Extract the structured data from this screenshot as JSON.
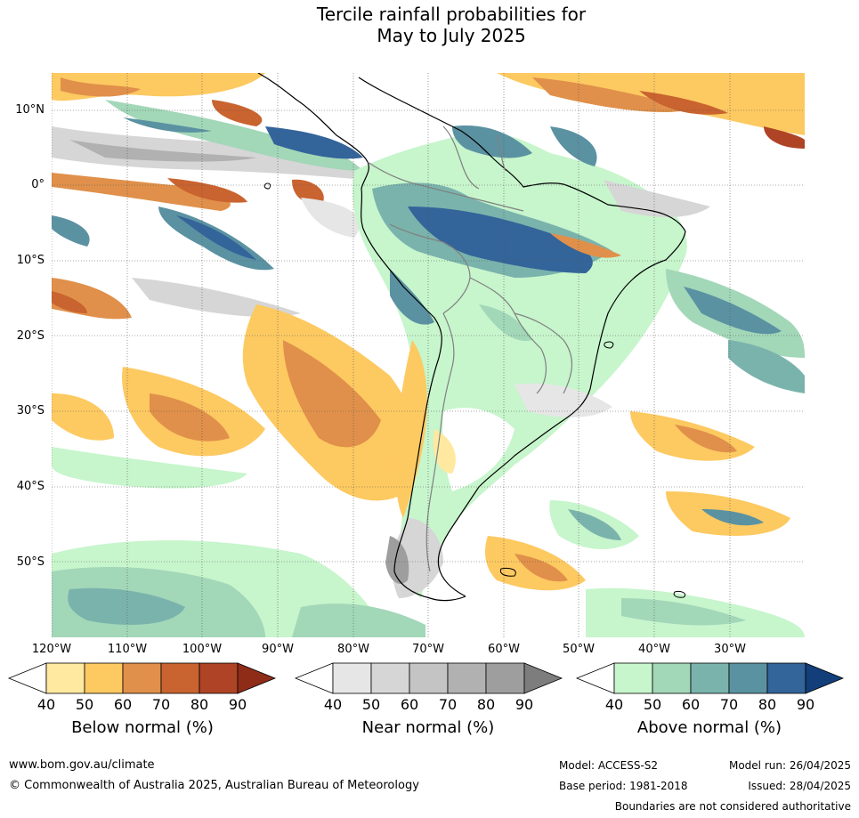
{
  "title_line1": "Tercile rainfall probabilities for",
  "title_line2": "May to July 2025",
  "lat_labels": [
    "10°N",
    "0°",
    "10°S",
    "20°S",
    "30°S",
    "40°S",
    "50°S"
  ],
  "lon_labels": [
    "120°W",
    "110°W",
    "100°W",
    "90°W",
    "80°W",
    "70°W",
    "60°W",
    "50°W",
    "40°W",
    "30°W"
  ],
  "colorbars": [
    {
      "title": "Below normal (%)",
      "ticks": [
        "40",
        "50",
        "60",
        "70",
        "80",
        "90"
      ],
      "colors": [
        "#ffffff",
        "#ffe9a0",
        "#fdc961",
        "#e0904a",
        "#c9632f",
        "#ae4425",
        "#8e2c18"
      ]
    },
    {
      "title": "Near normal (%)",
      "ticks": [
        "40",
        "50",
        "60",
        "70",
        "80",
        "90"
      ],
      "colors": [
        "#ffffff",
        "#e6e6e6",
        "#d6d6d6",
        "#c4c4c4",
        "#b1b1b1",
        "#9e9e9e",
        "#7d7d7d"
      ]
    },
    {
      "title": "Above normal (%)",
      "ticks": [
        "40",
        "50",
        "60",
        "70",
        "80",
        "90"
      ],
      "colors": [
        "#ffffff",
        "#c7f5cc",
        "#a2d7b8",
        "#7ab3ac",
        "#5b92a2",
        "#33649a",
        "#123f7a"
      ]
    }
  ],
  "footer": {
    "url": "www.bom.gov.au/climate",
    "copyright": "© Commonwealth of Australia 2025, Australian Bureau of Meteorology",
    "model": "Model: ACCESS-S2",
    "base_period": "Base period: 1981-2018",
    "model_run": "Model run: 26/04/2025",
    "issued": "Issued: 28/04/2025",
    "boundaries": "Boundaries are not considered authoritative"
  }
}
